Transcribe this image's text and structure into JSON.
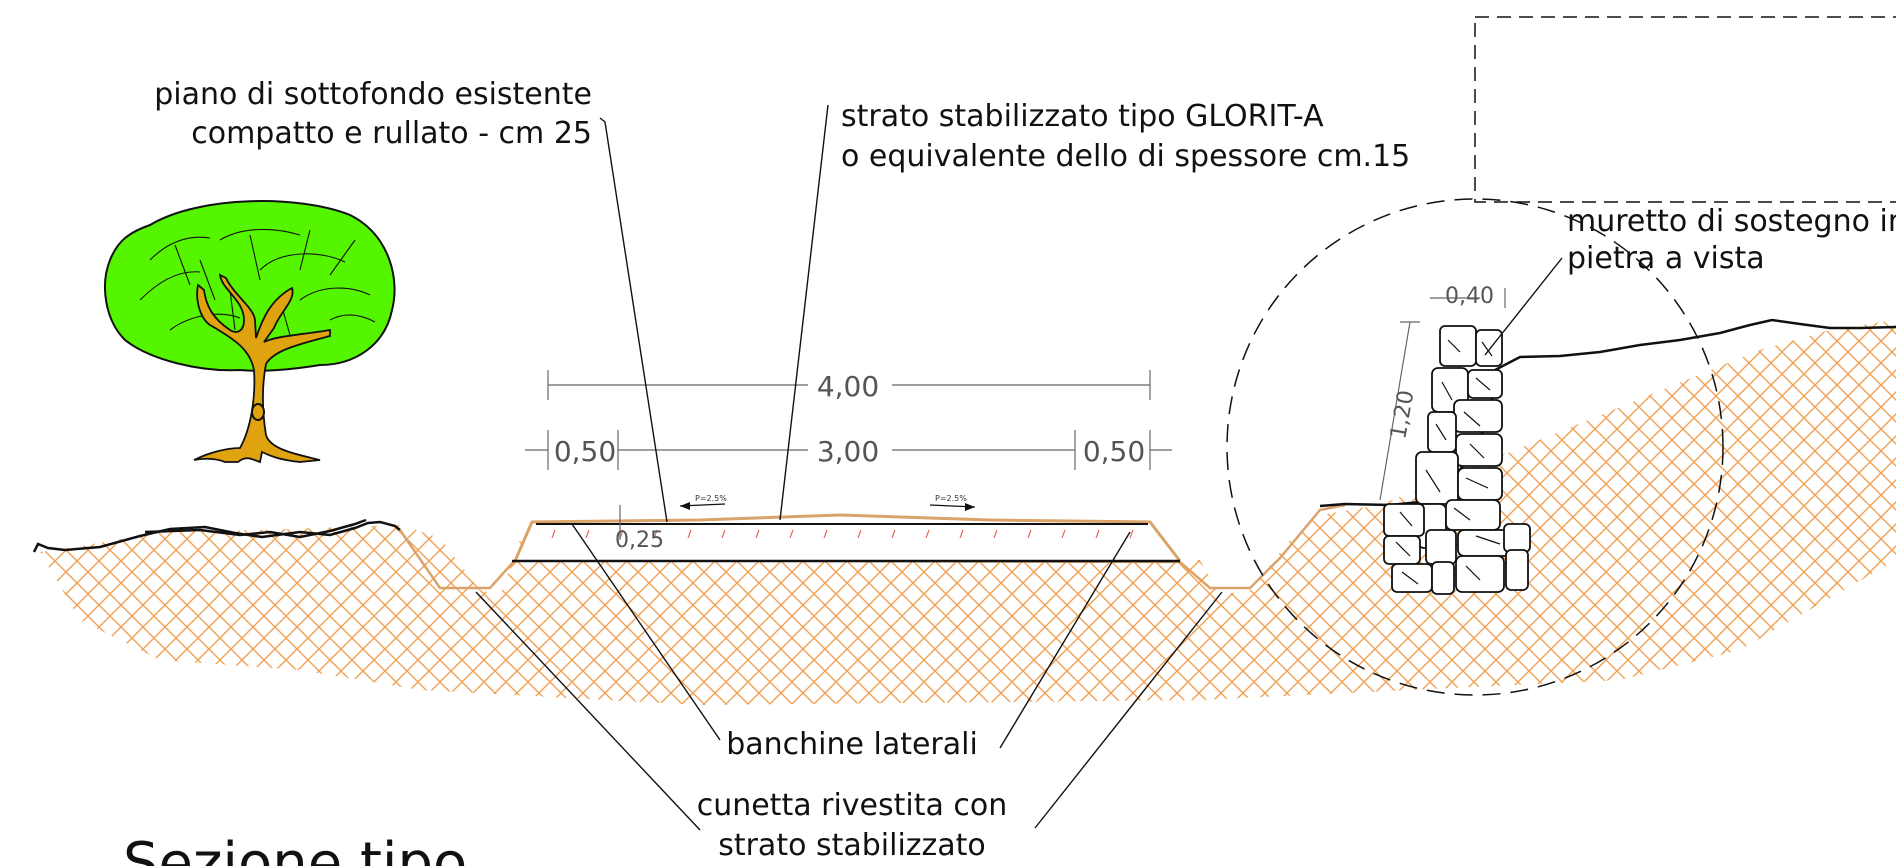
{
  "title": "Sezione tipo",
  "labels": {
    "piano_line1": "piano di sottofondo esistente",
    "piano_line2": "compatto e rullato - cm 25",
    "strato_line1": "strato stabilizzato tipo GLORIT-A",
    "strato_line2": "o equivalente dello di spessore cm.15",
    "muretto_line1": "muretto di sostegno in",
    "muretto_line2": "pietra a vista",
    "banchine": "banchine laterali",
    "cunetta_line1": "cunetta rivestita con",
    "cunetta_line2": "strato stabilizzato"
  },
  "dimensions": {
    "total_width": "4,00",
    "left_shoulder": "0,50",
    "carriageway": "3,00",
    "right_shoulder": "0,50",
    "layer_thickness": "0,25",
    "wall_width": "0,40",
    "wall_height": "1,20"
  },
  "slopes": {
    "left": "P=2.5%",
    "right": "P=2.5%"
  },
  "colors": {
    "hatch": "#f0a050",
    "surface_line": "#d9a36a",
    "tree_canopy": "#55f500",
    "tree_trunk": "#dea30e",
    "ink": "#111111",
    "dimension": "#666666"
  }
}
